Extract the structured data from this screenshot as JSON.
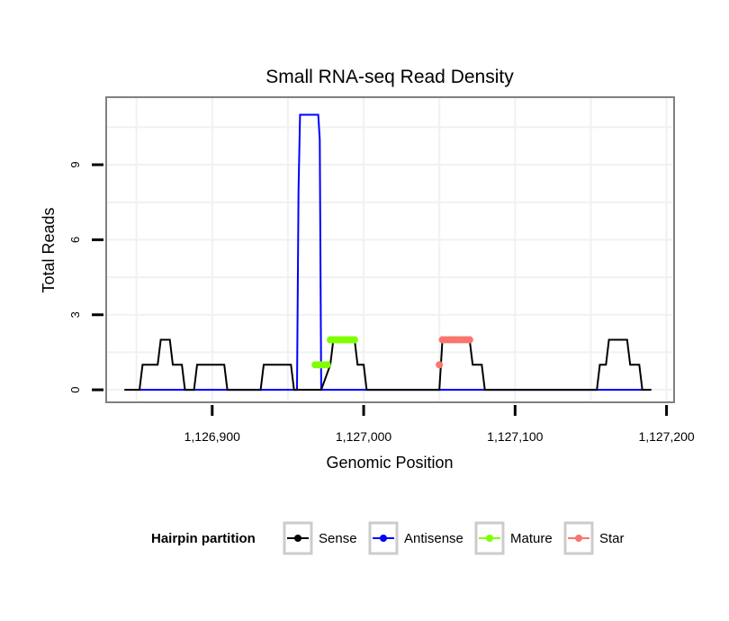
{
  "chart_data": {
    "type": "line",
    "title": "Small RNA-seq Read Density",
    "xlabel": "Genomic Position",
    "ylabel": "Total Reads",
    "xlim": [
      1126830,
      1127205
    ],
    "ylim": [
      -0.5,
      11.7
    ],
    "x_ticks": [
      {
        "value": 1126900,
        "label": "1,126,900"
      },
      {
        "value": 1127000,
        "label": "1,127,000"
      },
      {
        "value": 1127100,
        "label": "1,127,100"
      },
      {
        "value": 1127200,
        "label": "1,127,200"
      }
    ],
    "y_ticks": [
      {
        "value": 0,
        "label": "0"
      },
      {
        "value": 3,
        "label": "3"
      },
      {
        "value": 6,
        "label": "6"
      },
      {
        "value": 9,
        "label": "9"
      }
    ],
    "grid": true,
    "legend": {
      "title": "Hairpin partition",
      "position": "bottom",
      "entries": [
        "Sense",
        "Antisense",
        "Mature",
        "Star"
      ]
    },
    "series": [
      {
        "name": "Sense",
        "color": "#000000",
        "style": "line",
        "points": [
          [
            1126842,
            0
          ],
          [
            1126852,
            0
          ],
          [
            1126854,
            1
          ],
          [
            1126864,
            1
          ],
          [
            1126866,
            2
          ],
          [
            1126872,
            2
          ],
          [
            1126874,
            1
          ],
          [
            1126880,
            1
          ],
          [
            1126882,
            0
          ],
          [
            1126888,
            0
          ],
          [
            1126890,
            1
          ],
          [
            1126908,
            1
          ],
          [
            1126910,
            0
          ],
          [
            1126932,
            0
          ],
          [
            1126934,
            1
          ],
          [
            1126952,
            1
          ],
          [
            1126954,
            0
          ],
          [
            1126972,
            0
          ],
          [
            1126978,
            1
          ],
          [
            1126980,
            2
          ],
          [
            1126994,
            2
          ],
          [
            1126996,
            1
          ],
          [
            1127000,
            1
          ],
          [
            1127002,
            0
          ],
          [
            1127050,
            0
          ],
          [
            1127052,
            2
          ],
          [
            1127070,
            2
          ],
          [
            1127072,
            1
          ],
          [
            1127078,
            1
          ],
          [
            1127080,
            0
          ],
          [
            1127154,
            0
          ],
          [
            1127156,
            1
          ],
          [
            1127160,
            1
          ],
          [
            1127162,
            2
          ],
          [
            1127174,
            2
          ],
          [
            1127176,
            1
          ],
          [
            1127182,
            1
          ],
          [
            1127184,
            0
          ],
          [
            1127190,
            0
          ]
        ]
      },
      {
        "name": "Antisense",
        "color": "#0000ff",
        "style": "line",
        "points": [
          [
            1126852,
            0
          ],
          [
            1126956,
            0
          ],
          [
            1126957,
            8
          ],
          [
            1126958,
            11
          ],
          [
            1126970,
            11
          ],
          [
            1126971,
            10
          ],
          [
            1126972,
            0
          ],
          [
            1127184,
            0
          ]
        ]
      },
      {
        "name": "Mature",
        "color": "#80ff00",
        "style": "points",
        "points": [
          [
            1126968,
            1
          ],
          [
            1126970,
            1
          ],
          [
            1126972,
            1
          ],
          [
            1126974,
            1
          ],
          [
            1126976,
            1
          ],
          [
            1126978,
            2
          ],
          [
            1126980,
            2
          ],
          [
            1126982,
            2
          ],
          [
            1126984,
            2
          ],
          [
            1126986,
            2
          ],
          [
            1126988,
            2
          ],
          [
            1126990,
            2
          ],
          [
            1126992,
            2
          ],
          [
            1126994,
            2
          ]
        ]
      },
      {
        "name": "Star",
        "color": "#f8766d",
        "style": "points",
        "points": [
          [
            1127050,
            1
          ],
          [
            1127052,
            2
          ],
          [
            1127054,
            2
          ],
          [
            1127056,
            2
          ],
          [
            1127058,
            2
          ],
          [
            1127060,
            2
          ],
          [
            1127062,
            2
          ],
          [
            1127064,
            2
          ],
          [
            1127066,
            2
          ],
          [
            1127068,
            2
          ],
          [
            1127070,
            2
          ]
        ]
      }
    ]
  }
}
